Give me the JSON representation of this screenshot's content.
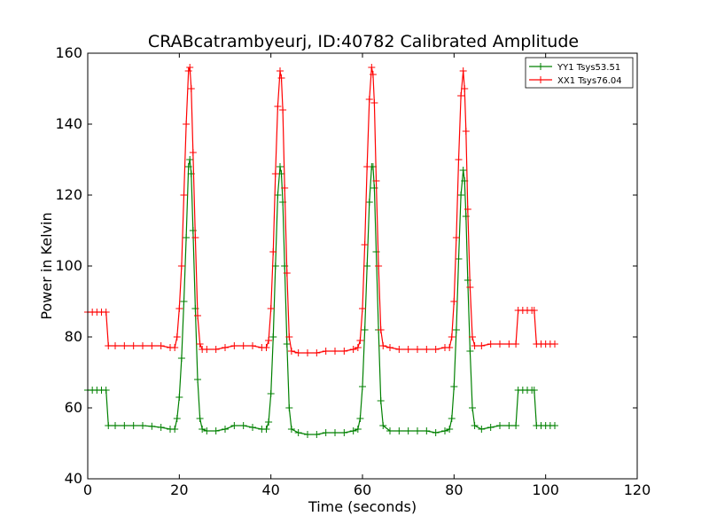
{
  "chart_data": {
    "type": "line",
    "title": "CRABcatrambyeurj, ID:40782 Calibrated Amplitude",
    "xlabel": "Time (seconds)",
    "ylabel": "Power in Kelvin",
    "xlim": [
      0,
      120
    ],
    "ylim": [
      40,
      160
    ],
    "xticks": [
      0,
      20,
      40,
      60,
      80,
      100,
      120
    ],
    "yticks": [
      40,
      60,
      80,
      100,
      120,
      140,
      160
    ],
    "grid": false,
    "legend_position": "top-right",
    "marker": "plus",
    "series": [
      {
        "name": "YY1 Tsys53.51",
        "color": "#008000",
        "points": [
          [
            0,
            65
          ],
          [
            1,
            65
          ],
          [
            2,
            65
          ],
          [
            3,
            65
          ],
          [
            4,
            65
          ],
          [
            4.5,
            55
          ],
          [
            6,
            55
          ],
          [
            8,
            55
          ],
          [
            10,
            55
          ],
          [
            12,
            55
          ],
          [
            14,
            54.8
          ],
          [
            16,
            54.5
          ],
          [
            18,
            54
          ],
          [
            19,
            54
          ],
          [
            19.5,
            57
          ],
          [
            20,
            63
          ],
          [
            20.5,
            74
          ],
          [
            21,
            90
          ],
          [
            21.5,
            108
          ],
          [
            22,
            128
          ],
          [
            22.3,
            130
          ],
          [
            22.6,
            126
          ],
          [
            23,
            110
          ],
          [
            23.5,
            88
          ],
          [
            24,
            68
          ],
          [
            24.5,
            57
          ],
          [
            25,
            54
          ],
          [
            26,
            53.5
          ],
          [
            28,
            53.5
          ],
          [
            30,
            54
          ],
          [
            32,
            55
          ],
          [
            34,
            55
          ],
          [
            36,
            54.5
          ],
          [
            38,
            54
          ],
          [
            39,
            54
          ],
          [
            39.5,
            56
          ],
          [
            40,
            64
          ],
          [
            40.5,
            80
          ],
          [
            41,
            100
          ],
          [
            41.5,
            120
          ],
          [
            42,
            128
          ],
          [
            42.3,
            126
          ],
          [
            42.6,
            118
          ],
          [
            43,
            100
          ],
          [
            43.5,
            78
          ],
          [
            44,
            60
          ],
          [
            44.5,
            54
          ],
          [
            46,
            53
          ],
          [
            48,
            52.5
          ],
          [
            50,
            52.5
          ],
          [
            52,
            53
          ],
          [
            54,
            53
          ],
          [
            56,
            53
          ],
          [
            58,
            53.5
          ],
          [
            59,
            54
          ],
          [
            59.5,
            57
          ],
          [
            60,
            66
          ],
          [
            60.5,
            82
          ],
          [
            61,
            100
          ],
          [
            61.5,
            118
          ],
          [
            62,
            128
          ],
          [
            62.3,
            128
          ],
          [
            62.6,
            122
          ],
          [
            63,
            104
          ],
          [
            63.5,
            82
          ],
          [
            64,
            62
          ],
          [
            64.5,
            55
          ],
          [
            66,
            53.5
          ],
          [
            68,
            53.5
          ],
          [
            70,
            53.5
          ],
          [
            72,
            53.5
          ],
          [
            74,
            53.5
          ],
          [
            76,
            53
          ],
          [
            78,
            53.5
          ],
          [
            79,
            54
          ],
          [
            79.5,
            57
          ],
          [
            80,
            66
          ],
          [
            80.5,
            82
          ],
          [
            81,
            102
          ],
          [
            81.5,
            120
          ],
          [
            82,
            127
          ],
          [
            82.3,
            124
          ],
          [
            82.6,
            114
          ],
          [
            83,
            96
          ],
          [
            83.5,
            76
          ],
          [
            84,
            60
          ],
          [
            84.5,
            55
          ],
          [
            86,
            54
          ],
          [
            88,
            54.5
          ],
          [
            90,
            55
          ],
          [
            92,
            55
          ],
          [
            93.5,
            55
          ],
          [
            94,
            65
          ],
          [
            95,
            65
          ],
          [
            96,
            65
          ],
          [
            97,
            65
          ],
          [
            97.5,
            65
          ],
          [
            98,
            55
          ],
          [
            99,
            55
          ],
          [
            100,
            55
          ],
          [
            101,
            55
          ],
          [
            102,
            55
          ]
        ]
      },
      {
        "name": "XX1 Tsys76.04",
        "color": "#ff0000",
        "points": [
          [
            0,
            87
          ],
          [
            1,
            87
          ],
          [
            2,
            87
          ],
          [
            3,
            87
          ],
          [
            4,
            87
          ],
          [
            4.5,
            77.5
          ],
          [
            6,
            77.5
          ],
          [
            8,
            77.5
          ],
          [
            10,
            77.5
          ],
          [
            12,
            77.5
          ],
          [
            14,
            77.5
          ],
          [
            16,
            77.5
          ],
          [
            18,
            77
          ],
          [
            19,
            77
          ],
          [
            19.5,
            80
          ],
          [
            20,
            88
          ],
          [
            20.5,
            100
          ],
          [
            21,
            120
          ],
          [
            21.5,
            140
          ],
          [
            22,
            155
          ],
          [
            22.3,
            156
          ],
          [
            22.6,
            150
          ],
          [
            23,
            132
          ],
          [
            23.5,
            108
          ],
          [
            24,
            86
          ],
          [
            24.5,
            78
          ],
          [
            25,
            76.5
          ],
          [
            26,
            76.5
          ],
          [
            28,
            76.5
          ],
          [
            30,
            77
          ],
          [
            32,
            77.5
          ],
          [
            34,
            77.5
          ],
          [
            36,
            77.5
          ],
          [
            38,
            77
          ],
          [
            39,
            77
          ],
          [
            39.5,
            79
          ],
          [
            40,
            88
          ],
          [
            40.5,
            104
          ],
          [
            41,
            126
          ],
          [
            41.5,
            145
          ],
          [
            42,
            155
          ],
          [
            42.3,
            153
          ],
          [
            42.6,
            144
          ],
          [
            43,
            122
          ],
          [
            43.5,
            98
          ],
          [
            44,
            80
          ],
          [
            44.5,
            76
          ],
          [
            46,
            75.5
          ],
          [
            48,
            75.5
          ],
          [
            50,
            75.5
          ],
          [
            52,
            76
          ],
          [
            54,
            76
          ],
          [
            56,
            76
          ],
          [
            58,
            76.5
          ],
          [
            59,
            77
          ],
          [
            59.5,
            79
          ],
          [
            60,
            88
          ],
          [
            60.5,
            106
          ],
          [
            61,
            128
          ],
          [
            61.5,
            147
          ],
          [
            62,
            156
          ],
          [
            62.3,
            154
          ],
          [
            62.6,
            146
          ],
          [
            63,
            124
          ],
          [
            63.5,
            100
          ],
          [
            64,
            82
          ],
          [
            64.5,
            77.5
          ],
          [
            66,
            77
          ],
          [
            68,
            76.5
          ],
          [
            70,
            76.5
          ],
          [
            72,
            76.5
          ],
          [
            74,
            76.5
          ],
          [
            76,
            76.5
          ],
          [
            78,
            77
          ],
          [
            79,
            77
          ],
          [
            79.5,
            80
          ],
          [
            80,
            90
          ],
          [
            80.5,
            108
          ],
          [
            81,
            130
          ],
          [
            81.5,
            148
          ],
          [
            82,
            155
          ],
          [
            82.3,
            150
          ],
          [
            82.6,
            138
          ],
          [
            83,
            116
          ],
          [
            83.5,
            94
          ],
          [
            84,
            80
          ],
          [
            84.5,
            77.5
          ],
          [
            86,
            77.5
          ],
          [
            88,
            78
          ],
          [
            90,
            78
          ],
          [
            92,
            78
          ],
          [
            93.5,
            78
          ],
          [
            94,
            87.5
          ],
          [
            95,
            87.5
          ],
          [
            96,
            87.5
          ],
          [
            97,
            87.5
          ],
          [
            97.5,
            87.5
          ],
          [
            98,
            78
          ],
          [
            99,
            78
          ],
          [
            100,
            78
          ],
          [
            101,
            78
          ],
          [
            102,
            78
          ]
        ]
      }
    ]
  }
}
